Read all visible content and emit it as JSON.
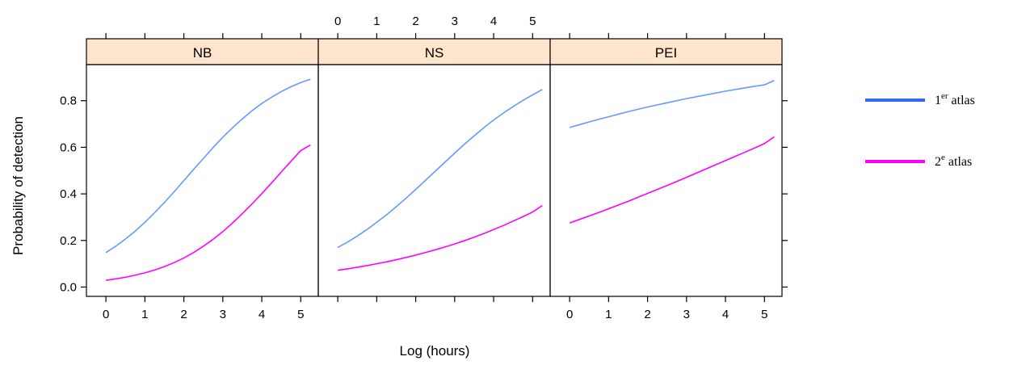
{
  "chart_data": {
    "type": "line",
    "xlabel": "Log (hours)",
    "ylabel": "Probability of detection",
    "xlim": [
      -0.5,
      5.45
    ],
    "ylim": [
      -0.04,
      0.955
    ],
    "x_ticks": [
      "0",
      "1",
      "2",
      "3",
      "4",
      "5"
    ],
    "y_ticks": [
      "0.0",
      "0.2",
      "0.4",
      "0.6",
      "0.8"
    ],
    "x": [
      0,
      0.25,
      0.5,
      0.75,
      1,
      1.25,
      1.5,
      1.75,
      2,
      2.25,
      2.5,
      2.75,
      3,
      3.25,
      3.5,
      3.75,
      4,
      4.25,
      4.5,
      4.75,
      5,
      5.25
    ],
    "legend": {
      "position": "right",
      "entries": [
        {
          "base": "1",
          "sup": "er",
          "rest": " atlas",
          "color": "#3366ff"
        },
        {
          "base": "2",
          "sup": "e",
          "rest": " atlas",
          "color": "#ff00ff"
        }
      ]
    },
    "panels": [
      {
        "name": "NB",
        "series": [
          {
            "legend_index": 0,
            "color": "#6699ff",
            "values": [
              0.148,
              0.175,
              0.206,
              0.24,
              0.278,
              0.319,
              0.363,
              0.409,
              0.457,
              0.505,
              0.552,
              0.599,
              0.643,
              0.684,
              0.722,
              0.757,
              0.788,
              0.815,
              0.839,
              0.86,
              0.878,
              0.892
            ]
          },
          {
            "legend_index": 1,
            "color": "#ff00ff",
            "values": [
              0.029,
              0.035,
              0.042,
              0.051,
              0.061,
              0.073,
              0.088,
              0.105,
              0.125,
              0.148,
              0.175,
              0.205,
              0.238,
              0.275,
              0.315,
              0.357,
              0.401,
              0.447,
              0.494,
              0.54,
              0.586,
              0.61
            ]
          }
        ]
      },
      {
        "name": "NS",
        "series": [
          {
            "legend_index": 0,
            "color": "#6699ff",
            "values": [
              0.17,
              0.193,
              0.219,
              0.247,
              0.278,
              0.31,
              0.345,
              0.381,
              0.419,
              0.458,
              0.497,
              0.536,
              0.575,
              0.613,
              0.649,
              0.684,
              0.717,
              0.747,
              0.775,
              0.801,
              0.825,
              0.848
            ]
          },
          {
            "legend_index": 1,
            "color": "#ff00ff",
            "values": [
              0.072,
              0.078,
              0.085,
              0.092,
              0.1,
              0.108,
              0.117,
              0.127,
              0.137,
              0.148,
              0.16,
              0.172,
              0.185,
              0.199,
              0.214,
              0.23,
              0.247,
              0.264,
              0.283,
              0.302,
              0.322,
              0.35
            ]
          }
        ]
      },
      {
        "name": "PEI",
        "series": [
          {
            "legend_index": 0,
            "color": "#6699ff",
            "values": [
              0.685,
              0.697,
              0.709,
              0.72,
              0.731,
              0.742,
              0.753,
              0.763,
              0.773,
              0.782,
              0.791,
              0.8,
              0.809,
              0.817,
              0.825,
              0.833,
              0.841,
              0.848,
              0.855,
              0.862,
              0.868,
              0.887
            ]
          },
          {
            "legend_index": 1,
            "color": "#ff00ff",
            "values": [
              0.275,
              0.29,
              0.305,
              0.32,
              0.336,
              0.352,
              0.368,
              0.385,
              0.402,
              0.419,
              0.436,
              0.453,
              0.471,
              0.489,
              0.507,
              0.525,
              0.543,
              0.561,
              0.579,
              0.597,
              0.616,
              0.645
            ]
          }
        ]
      }
    ]
  }
}
